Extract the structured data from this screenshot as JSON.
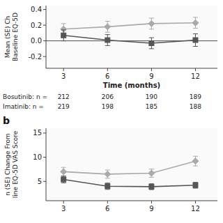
{
  "chart_data": [
    {
      "type": "line",
      "x": [
        3,
        6,
        9,
        12
      ],
      "xlim": [
        1.8,
        13.5
      ],
      "xticks": [
        3,
        6,
        9,
        12
      ],
      "x_label": "Time (months)",
      "y_label": "Mean (SE) Ch\nBaseline EQ-5D",
      "ylim": [
        -0.35,
        0.45
      ],
      "yticks": [
        -0.2,
        {
          "value": 0,
          "label": "0.0"
        },
        0.2,
        0.4
      ],
      "reference_line": 0,
      "grid": false,
      "series": [
        {
          "color": "#555555",
          "marker": "square",
          "values": [
            0.07,
            0.01,
            -0.03,
            0.01
          ],
          "errors": [
            0.07,
            0.07,
            0.07,
            0.08
          ]
        },
        {
          "color": "#aaaaaa",
          "marker": "diamond",
          "values": [
            0.15,
            0.18,
            0.22,
            0.23
          ],
          "errors": [
            0.07,
            0.07,
            0.07,
            0.07
          ]
        }
      ],
      "table": [
        {
          "label": "Bosutinib: n =",
          "values": [
            212,
            206,
            190,
            189
          ]
        },
        {
          "label": "Imatinib: n =",
          "values": [
            219,
            198,
            185,
            188
          ]
        }
      ]
    },
    {
      "type": "line",
      "x": [
        3,
        6,
        9,
        12
      ],
      "xlim": [
        1.8,
        13.5
      ],
      "xticks": [
        3,
        6,
        9,
        12
      ],
      "y_label": "n (SE) Change From\nline EQ-5D VAS Score",
      "ylim": [
        1,
        16
      ],
      "yticks": [
        5,
        10,
        15
      ],
      "grid": false,
      "annotations": [
        {
          "text": "b"
        }
      ],
      "series": [
        {
          "color": "#555555",
          "marker": "square",
          "values": [
            5.4,
            4.0,
            3.9,
            4.2
          ],
          "errors": [
            0.7,
            0.65,
            0.6,
            0.6
          ]
        },
        {
          "color": "#aaaaaa",
          "marker": "diamond",
          "values": [
            7.0,
            6.5,
            6.7,
            9.2
          ],
          "errors": [
            0.9,
            0.85,
            0.85,
            1.0
          ]
        }
      ]
    }
  ]
}
